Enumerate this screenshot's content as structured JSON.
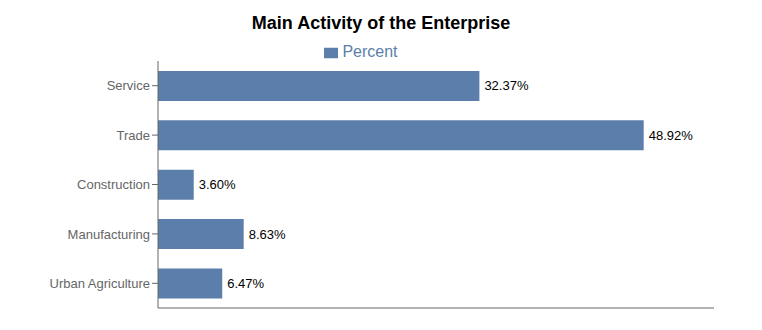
{
  "chart_data": {
    "type": "bar",
    "title": "Main Activity of the Enterprise",
    "orientation": "horizontal",
    "categories": [
      "Service",
      "Trade",
      "Construction",
      "Manufacturing",
      "Urban Agriculture"
    ],
    "series": [
      {
        "name": "Percent",
        "color": "#5b7faa",
        "values": [
          32.37,
          48.92,
          3.6,
          8.63,
          6.47
        ],
        "value_labels": [
          "32.37%",
          "48.92%",
          "3.60%",
          "8.63%",
          "6.47%"
        ]
      }
    ],
    "xlim": [
      0,
      56
    ],
    "data_labels": true,
    "tick_labels": "y",
    "legend": "top",
    "grid": false
  }
}
